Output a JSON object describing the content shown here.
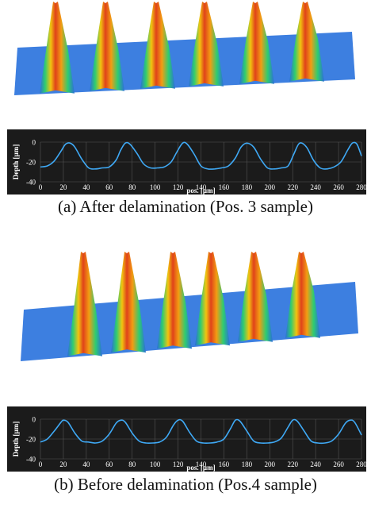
{
  "captions": {
    "a": "(a) After delamination (Pos. 3 sample)",
    "b": "(b) Before delamination (Pos.4 sample)"
  },
  "colors": {
    "profile_background": "#1b1b1b",
    "profile_line": "#3fa9f5",
    "axis_text": "#ffffff",
    "gridline": "#555555",
    "surface_low": "#2a6fd6",
    "surface_mid": "#2ecc71",
    "surface_high": "#e0421a"
  },
  "chart_data": [
    {
      "type": "line",
      "panel": "a",
      "xlabel": "pos. [µm]",
      "ylabel": "Depth [µm]",
      "xlim": [
        0,
        280
      ],
      "ylim": [
        -40,
        0
      ],
      "xticks": [
        0,
        20,
        40,
        60,
        80,
        100,
        120,
        140,
        160,
        180,
        200,
        220,
        240,
        260,
        280
      ],
      "yticks": [
        0,
        -20,
        -40
      ],
      "grid": true,
      "x": [
        0,
        6,
        12,
        18,
        22,
        26,
        30,
        36,
        42,
        48,
        54,
        60,
        66,
        70,
        74,
        78,
        84,
        90,
        96,
        102,
        108,
        114,
        119,
        124,
        128,
        134,
        140,
        146,
        152,
        158,
        164,
        170,
        175,
        180,
        186,
        192,
        198,
        204,
        210,
        216,
        221,
        226,
        232,
        238,
        244,
        250,
        256,
        262,
        268,
        272,
        276,
        280
      ],
      "y": [
        -25,
        -24,
        -19,
        -9,
        -2,
        -1,
        -5,
        -17,
        -26,
        -27,
        -26,
        -25,
        -18,
        -8,
        -1,
        -2,
        -11,
        -22,
        -26,
        -26,
        -25,
        -20,
        -10,
        -1,
        -2,
        -12,
        -24,
        -27,
        -27,
        -26,
        -24,
        -16,
        -5,
        -1,
        -5,
        -17,
        -26,
        -27,
        -26,
        -24,
        -12,
        -1,
        -5,
        -18,
        -26,
        -27,
        -25,
        -20,
        -8,
        -1,
        -2,
        -14
      ]
    },
    {
      "type": "line",
      "panel": "b",
      "xlabel": "pos. [µm]",
      "ylabel": "Depth [µm]",
      "xlim": [
        0,
        280
      ],
      "ylim": [
        -40,
        0
      ],
      "xticks": [
        0,
        20,
        40,
        60,
        80,
        100,
        120,
        140,
        160,
        180,
        200,
        220,
        240,
        260,
        280
      ],
      "yticks": [
        0,
        -20,
        -40
      ],
      "grid": true,
      "x": [
        0,
        6,
        12,
        18,
        20,
        24,
        30,
        36,
        42,
        48,
        54,
        60,
        66,
        70,
        74,
        80,
        86,
        92,
        98,
        104,
        110,
        116,
        120,
        124,
        130,
        136,
        142,
        148,
        154,
        160,
        166,
        170,
        174,
        180,
        186,
        192,
        198,
        204,
        210,
        216,
        220,
        224,
        230,
        236,
        242,
        248,
        254,
        260,
        266,
        270,
        274,
        280
      ],
      "y": [
        -23,
        -20,
        -12,
        -3,
        -1,
        -3,
        -14,
        -22,
        -23,
        -24,
        -22,
        -15,
        -4,
        -1,
        -3,
        -14,
        -22,
        -24,
        -24,
        -23,
        -18,
        -6,
        -1,
        -2,
        -13,
        -22,
        -24,
        -24,
        -23,
        -20,
        -9,
        -1,
        -2,
        -12,
        -22,
        -24,
        -24,
        -23,
        -19,
        -8,
        -1,
        -2,
        -12,
        -22,
        -24,
        -24,
        -22,
        -15,
        -4,
        -1,
        -3,
        -16
      ]
    }
  ]
}
